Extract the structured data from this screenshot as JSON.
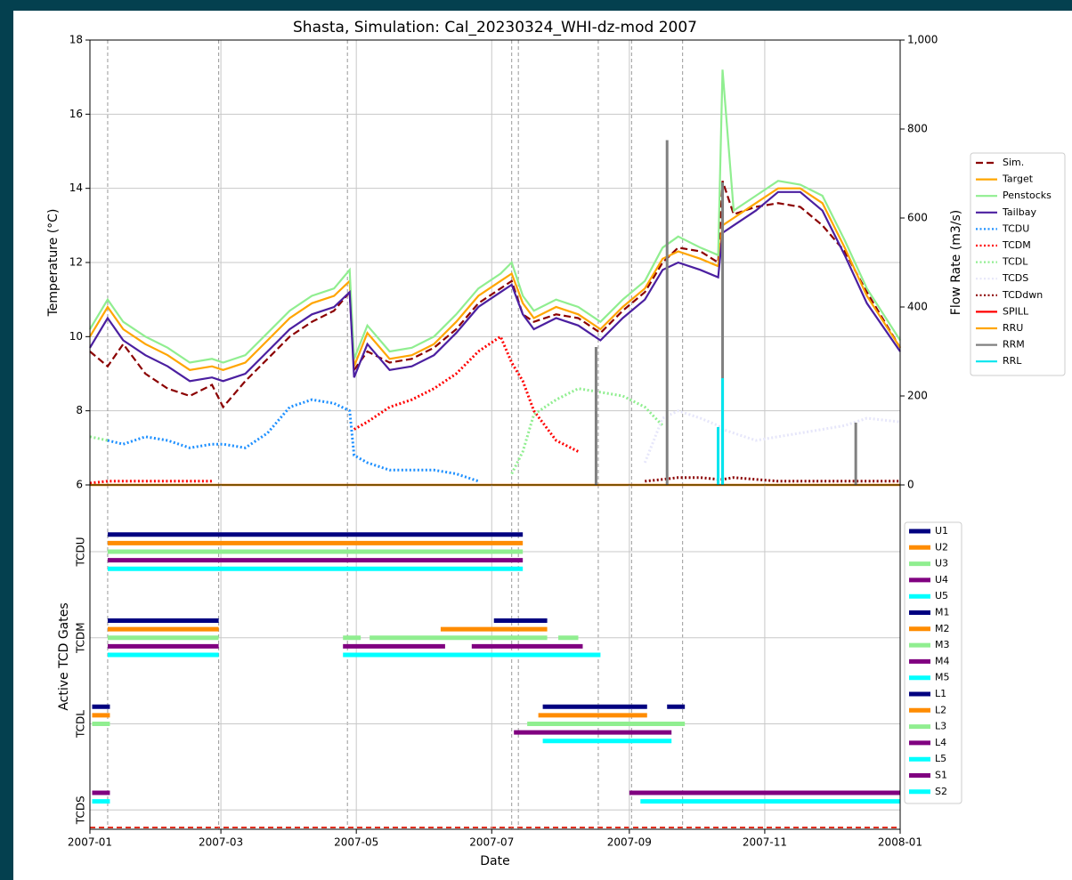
{
  "chart_data": [
    {
      "type": "line",
      "title": "Shasta, Simulation: Cal_20230324_WHI-dz-mod 2007",
      "ylabel": "Temperature (°C)",
      "y2label": "Flow Rate (m3/s)",
      "xlim": [
        0,
        365
      ],
      "ylim": [
        6,
        18
      ],
      "yticks": [
        6,
        8,
        10,
        12,
        14,
        16,
        18
      ],
      "y2lim": [
        0,
        1000
      ],
      "y2ticks": [
        0,
        200,
        400,
        600,
        800,
        {
          "value": 1000,
          "label": "1,000"
        }
      ],
      "grid": true,
      "event_lines": [
        8,
        58,
        116,
        190,
        193,
        229,
        244,
        267
      ],
      "x": [
        0,
        8,
        15,
        25,
        35,
        45,
        55,
        60,
        70,
        80,
        90,
        100,
        110,
        117,
        119,
        125,
        135,
        145,
        155,
        165,
        175,
        185,
        190,
        195,
        200,
        210,
        220,
        230,
        240,
        250,
        258,
        265,
        275,
        283,
        285,
        290,
        300,
        310,
        320,
        330,
        340,
        350,
        365
      ],
      "series": [
        {
          "name": "Sim.",
          "color": "#8b0000",
          "style": "dashed",
          "values": [
            9.6,
            9.2,
            9.8,
            9.0,
            8.6,
            8.4,
            8.7,
            8.1,
            8.8,
            9.4,
            10.0,
            10.4,
            10.7,
            11.2,
            9.1,
            9.6,
            9.3,
            9.4,
            9.7,
            10.2,
            10.9,
            11.3,
            11.5,
            10.6,
            10.4,
            10.6,
            10.5,
            10.1,
            10.7,
            11.2,
            12.0,
            12.4,
            12.3,
            12.0,
            14.2,
            13.3,
            13.5,
            13.6,
            13.5,
            13.0,
            12.3,
            11.2,
            9.7
          ]
        },
        {
          "name": "Target",
          "color": "#ffa500",
          "style": "solid",
          "values": [
            10.0,
            10.8,
            10.2,
            9.8,
            9.5,
            9.1,
            9.2,
            9.1,
            9.3,
            9.9,
            10.5,
            10.9,
            11.1,
            11.5,
            9.2,
            10.1,
            9.4,
            9.5,
            9.8,
            10.4,
            11.1,
            11.5,
            11.7,
            10.9,
            10.5,
            10.8,
            10.6,
            10.2,
            10.8,
            11.3,
            12.1,
            12.3,
            12.1,
            11.9,
            13.0,
            13.2,
            13.6,
            14.0,
            14.0,
            13.6,
            12.4,
            11.1,
            9.7
          ]
        },
        {
          "name": "Penstocks",
          "color": "#90ee90",
          "style": "solid",
          "values": [
            10.2,
            11.0,
            10.4,
            10.0,
            9.7,
            9.3,
            9.4,
            9.3,
            9.5,
            10.1,
            10.7,
            11.1,
            11.3,
            11.8,
            9.4,
            10.3,
            9.6,
            9.7,
            10.0,
            10.6,
            11.3,
            11.7,
            12.0,
            11.1,
            10.7,
            11.0,
            10.8,
            10.4,
            11.0,
            11.5,
            12.4,
            12.7,
            12.4,
            12.2,
            17.2,
            13.4,
            13.8,
            14.2,
            14.1,
            13.8,
            12.6,
            11.3,
            9.9
          ]
        },
        {
          "name": "Tailbay",
          "color": "#4b1fa0",
          "style": "solid",
          "values": [
            9.7,
            10.5,
            9.9,
            9.5,
            9.2,
            8.8,
            8.9,
            8.8,
            9.0,
            9.6,
            10.2,
            10.6,
            10.8,
            11.2,
            8.9,
            9.8,
            9.1,
            9.2,
            9.5,
            10.1,
            10.8,
            11.2,
            11.4,
            10.6,
            10.2,
            10.5,
            10.3,
            9.9,
            10.5,
            11.0,
            11.8,
            12.0,
            11.8,
            11.6,
            12.8,
            13.0,
            13.4,
            13.9,
            13.9,
            13.4,
            12.2,
            10.9,
            9.6
          ]
        },
        {
          "name": "TCDU",
          "color": "#1e90ff",
          "style": "dotted",
          "values": [
            null,
            7.2,
            7.1,
            7.3,
            7.2,
            7.0,
            7.1,
            7.1,
            7.0,
            7.4,
            8.1,
            8.3,
            8.2,
            8.0,
            6.8,
            6.6,
            6.4,
            6.4,
            6.4,
            6.3,
            6.1,
            null,
            null,
            null,
            null,
            null,
            null,
            null,
            null,
            null,
            null,
            null,
            null,
            null,
            null,
            null,
            null,
            null,
            null,
            null,
            null,
            null,
            null
          ]
        },
        {
          "name": "TCDM",
          "color": "#ff0000",
          "style": "dotted",
          "values": [
            6.05,
            6.1,
            6.1,
            6.1,
            6.1,
            6.1,
            6.1,
            null,
            null,
            null,
            null,
            null,
            null,
            null,
            7.5,
            7.7,
            8.1,
            8.3,
            8.6,
            9.0,
            9.6,
            10.0,
            9.3,
            8.8,
            8.0,
            7.2,
            6.9,
            null,
            null,
            null,
            null,
            null,
            null,
            null,
            null,
            null,
            null,
            null,
            null,
            null,
            null,
            null,
            null
          ]
        },
        {
          "name": "TCDL",
          "color": "#90ee90",
          "style": "dotted",
          "values": [
            7.3,
            7.2,
            null,
            null,
            null,
            null,
            null,
            null,
            null,
            null,
            null,
            null,
            null,
            null,
            null,
            null,
            null,
            null,
            null,
            null,
            null,
            null,
            6.3,
            6.9,
            7.9,
            8.3,
            8.6,
            8.5,
            8.4,
            8.1,
            7.6,
            null,
            null,
            null,
            null,
            null,
            null,
            null,
            null,
            null,
            null,
            null,
            null
          ]
        },
        {
          "name": "TCDS",
          "color": "#e6e6fa",
          "style": "dotted",
          "values": [
            null,
            null,
            null,
            null,
            null,
            null,
            null,
            null,
            null,
            null,
            null,
            null,
            null,
            null,
            null,
            null,
            null,
            null,
            null,
            null,
            null,
            null,
            null,
            null,
            null,
            null,
            null,
            null,
            null,
            6.6,
            7.8,
            8.0,
            7.8,
            7.6,
            7.5,
            7.4,
            7.2,
            7.3,
            7.4,
            7.5,
            7.6,
            7.8,
            7.7
          ]
        },
        {
          "name": "TCDdwn",
          "color": "#8b0000",
          "style": "dotted",
          "values": [
            null,
            null,
            null,
            null,
            null,
            null,
            null,
            null,
            null,
            null,
            null,
            null,
            null,
            null,
            null,
            null,
            null,
            null,
            null,
            null,
            null,
            null,
            null,
            null,
            null,
            null,
            null,
            null,
            null,
            6.1,
            6.15,
            6.2,
            6.2,
            6.15,
            6.15,
            6.2,
            6.15,
            6.1,
            6.1,
            6.1,
            6.1,
            6.1,
            6.1
          ]
        },
        {
          "name": "SPILL",
          "color": "#ff0000",
          "style": "solid",
          "axis": "y2",
          "x": [
            0,
            365
          ],
          "values": [
            0,
            0
          ]
        },
        {
          "name": "RRU",
          "color": "#ffa500",
          "style": "solid",
          "axis": "y2",
          "x": [
            0,
            365
          ],
          "values": [
            0,
            0
          ]
        },
        {
          "name": "RRM",
          "color": "#808080",
          "style": "spike",
          "axis": "y2",
          "x": [
            228,
            260,
            285,
            345
          ],
          "values": [
            310,
            775,
            680,
            140
          ]
        },
        {
          "name": "RRL",
          "color": "#00e5ee",
          "style": "spike",
          "axis": "y2",
          "x": [
            283,
            285
          ],
          "values": [
            130,
            240
          ]
        }
      ]
    },
    {
      "type": "gantt",
      "xlabel": "Date",
      "ylabel": "Active TCD Gates",
      "xlim": [
        0,
        365
      ],
      "xticks": [
        {
          "value": 0,
          "label": "2007-01"
        },
        {
          "value": 59,
          "label": "2007-03"
        },
        {
          "value": 120,
          "label": "2007-05"
        },
        {
          "value": 181,
          "label": "2007-07"
        },
        {
          "value": 243,
          "label": "2007-09"
        },
        {
          "value": 304,
          "label": "2007-11"
        },
        {
          "value": 365,
          "label": "2008-01"
        }
      ],
      "categories": [
        "TCDU",
        "TCDM",
        "TCDL",
        "TCDS"
      ],
      "gates": [
        {
          "name": "U1",
          "group": 0,
          "color": "#000080",
          "segments": [
            [
              8,
              195
            ]
          ]
        },
        {
          "name": "U2",
          "group": 0,
          "color": "#ff8c00",
          "segments": [
            [
              8,
              195
            ]
          ]
        },
        {
          "name": "U3",
          "group": 0,
          "color": "#90ee90",
          "segments": [
            [
              8,
              195
            ]
          ]
        },
        {
          "name": "U4",
          "group": 0,
          "color": "#800080",
          "segments": [
            [
              8,
              195
            ]
          ]
        },
        {
          "name": "U5",
          "group": 0,
          "color": "#00ffff",
          "segments": [
            [
              8,
              195
            ]
          ]
        },
        {
          "name": "M1",
          "group": 1,
          "color": "#000080",
          "segments": [
            [
              8,
              58
            ],
            [
              182,
              206
            ]
          ]
        },
        {
          "name": "M2",
          "group": 1,
          "color": "#ff8c00",
          "segments": [
            [
              8,
              58
            ],
            [
              158,
              206
            ]
          ]
        },
        {
          "name": "M3",
          "group": 1,
          "color": "#90ee90",
          "segments": [
            [
              8,
              58
            ],
            [
              114,
              122
            ],
            [
              126,
              206
            ],
            [
              211,
              220
            ]
          ]
        },
        {
          "name": "M4",
          "group": 1,
          "color": "#800080",
          "segments": [
            [
              8,
              58
            ],
            [
              114,
              160
            ],
            [
              172,
              222
            ]
          ]
        },
        {
          "name": "M5",
          "group": 1,
          "color": "#00ffff",
          "segments": [
            [
              8,
              58
            ],
            [
              114,
              230
            ]
          ]
        },
        {
          "name": "L1",
          "group": 2,
          "color": "#000080",
          "segments": [
            [
              1,
              9
            ],
            [
              204,
              251
            ],
            [
              260,
              268
            ]
          ]
        },
        {
          "name": "L2",
          "group": 2,
          "color": "#ff8c00",
          "segments": [
            [
              1,
              9
            ],
            [
              202,
              251
            ]
          ]
        },
        {
          "name": "L3",
          "group": 2,
          "color": "#90ee90",
          "segments": [
            [
              1,
              9
            ],
            [
              197,
              268
            ]
          ]
        },
        {
          "name": "L4",
          "group": 2,
          "color": "#800080",
          "segments": [
            [
              191,
              262
            ]
          ]
        },
        {
          "name": "L5",
          "group": 2,
          "color": "#00ffff",
          "segments": [
            [
              204,
              262
            ]
          ]
        },
        {
          "name": "S1",
          "group": 3,
          "color": "#800080",
          "segments": [
            [
              1,
              9
            ],
            [
              243,
              365
            ]
          ]
        },
        {
          "name": "S2",
          "group": 3,
          "color": "#00ffff",
          "segments": [
            [
              1,
              9
            ],
            [
              248,
              365
            ]
          ]
        }
      ]
    }
  ]
}
